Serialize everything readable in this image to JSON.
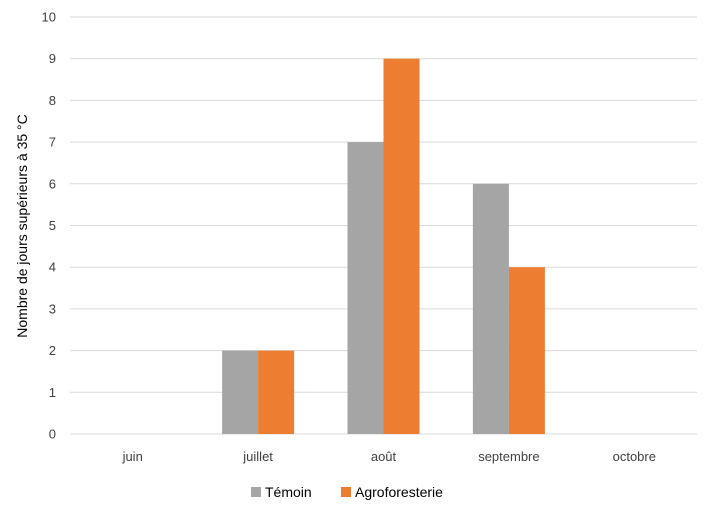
{
  "chart_data": {
    "type": "bar",
    "categories": [
      "juin",
      "juillet",
      "août",
      "septembre",
      "octobre"
    ],
    "series": [
      {
        "name": "Témoin",
        "values": [
          0,
          2,
          7,
          6,
          0
        ],
        "color": "#a5a5a5"
      },
      {
        "name": "Agroforesterie",
        "values": [
          0,
          2,
          9,
          4,
          0
        ],
        "color": "#ed7d31"
      }
    ],
    "ylabel": "Nombre de jours supérieurs à 35 °C",
    "ylim": [
      0,
      10
    ],
    "yticks": [
      0,
      1,
      2,
      3,
      4,
      5,
      6,
      7,
      8,
      9,
      10
    ],
    "grid": true,
    "legend_position": "bottom"
  }
}
